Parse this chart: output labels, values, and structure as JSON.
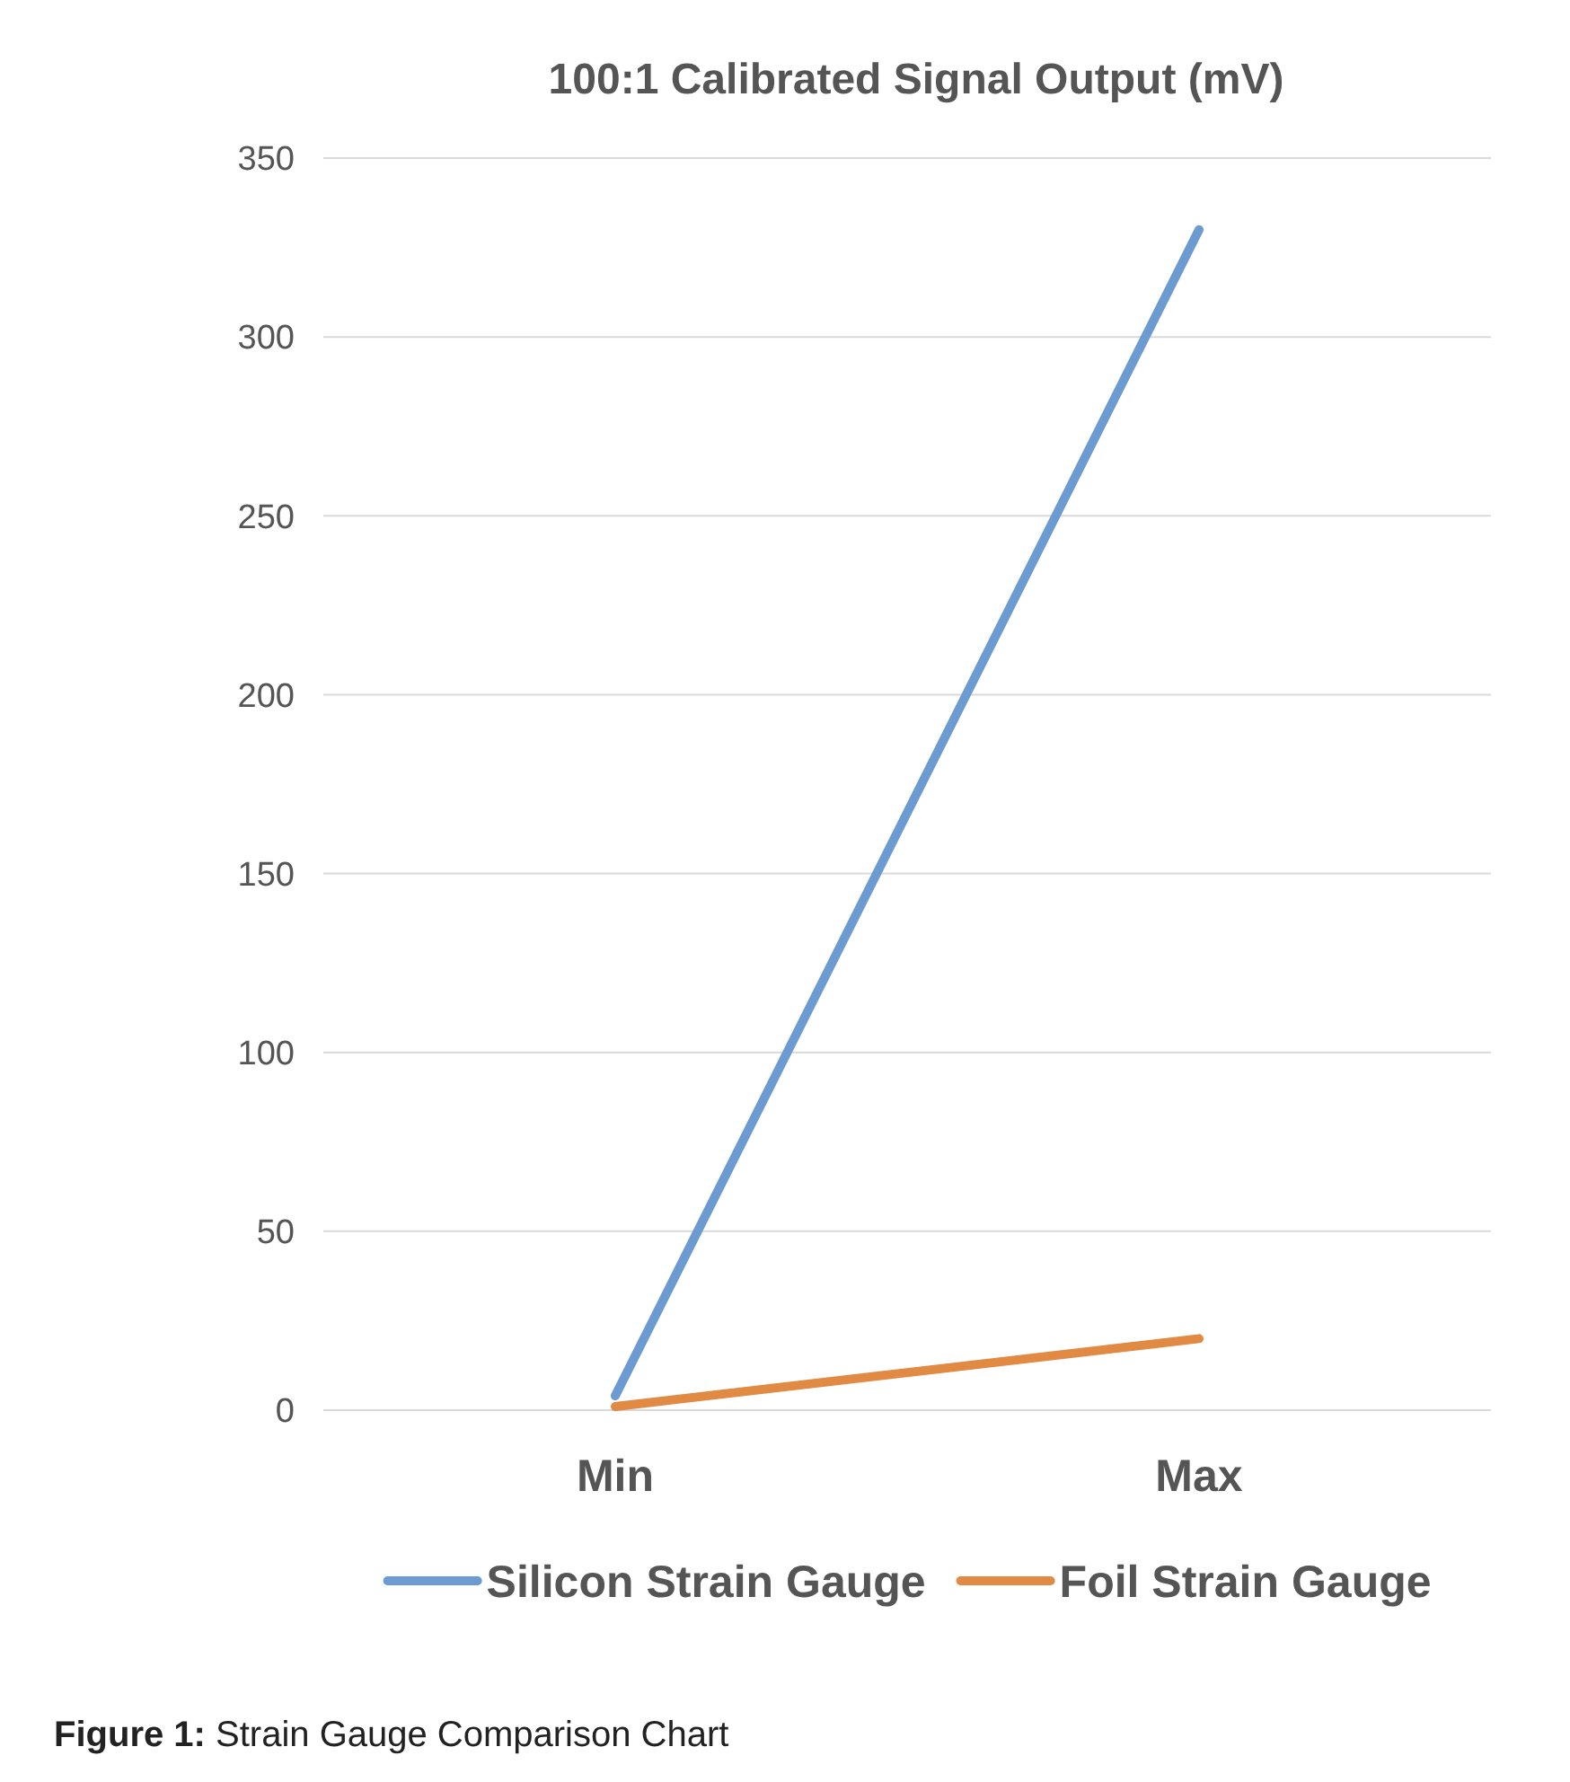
{
  "chart_data": {
    "type": "line",
    "title": "100:1 Calibrated Signal Output (mV)",
    "categories": [
      "Min",
      "Max"
    ],
    "series": [
      {
        "name": "Silicon Strain Gauge",
        "color": "#6b9bd0",
        "values": [
          4,
          330
        ]
      },
      {
        "name": "Foil Strain Gauge",
        "color": "#e08a43",
        "values": [
          1,
          20
        ]
      }
    ],
    "ylim": [
      0,
      350
    ],
    "yticks": [
      0,
      50,
      100,
      150,
      200,
      250,
      300,
      350
    ],
    "grid": "y",
    "legend": "bottom",
    "marker": "none",
    "line_style": "solid",
    "annotations": [
      "Figure 1: Strain Gauge Comparison Chart"
    ]
  }
}
